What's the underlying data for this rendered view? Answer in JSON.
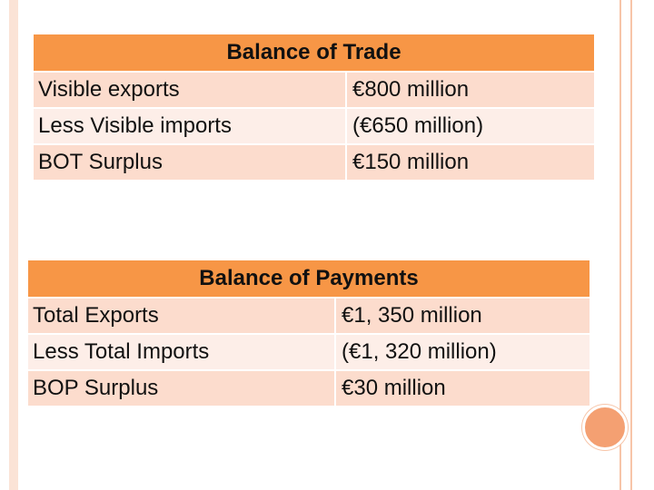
{
  "balance_of_trade": {
    "title": "Balance of Trade",
    "rows": [
      {
        "label": "Visible exports",
        "value": "€800 million"
      },
      {
        "label": "Less Visible imports",
        "value": "(€650 million)"
      },
      {
        "label": "BOT Surplus",
        "value": "€150 million"
      }
    ]
  },
  "balance_of_payments": {
    "title": "Balance of Payments",
    "rows": [
      {
        "label": "Total Exports",
        "value": "€1, 350 million"
      },
      {
        "label": "Less Total Imports",
        "value": "(€1, 320 million)"
      },
      {
        "label": "BOP Surplus",
        "value": "€30 million"
      }
    ]
  },
  "colors": {
    "header": "#f79646",
    "row_dark": "#fcdccd",
    "row_light": "#fdeee8",
    "frame": "#f7c5a8"
  }
}
